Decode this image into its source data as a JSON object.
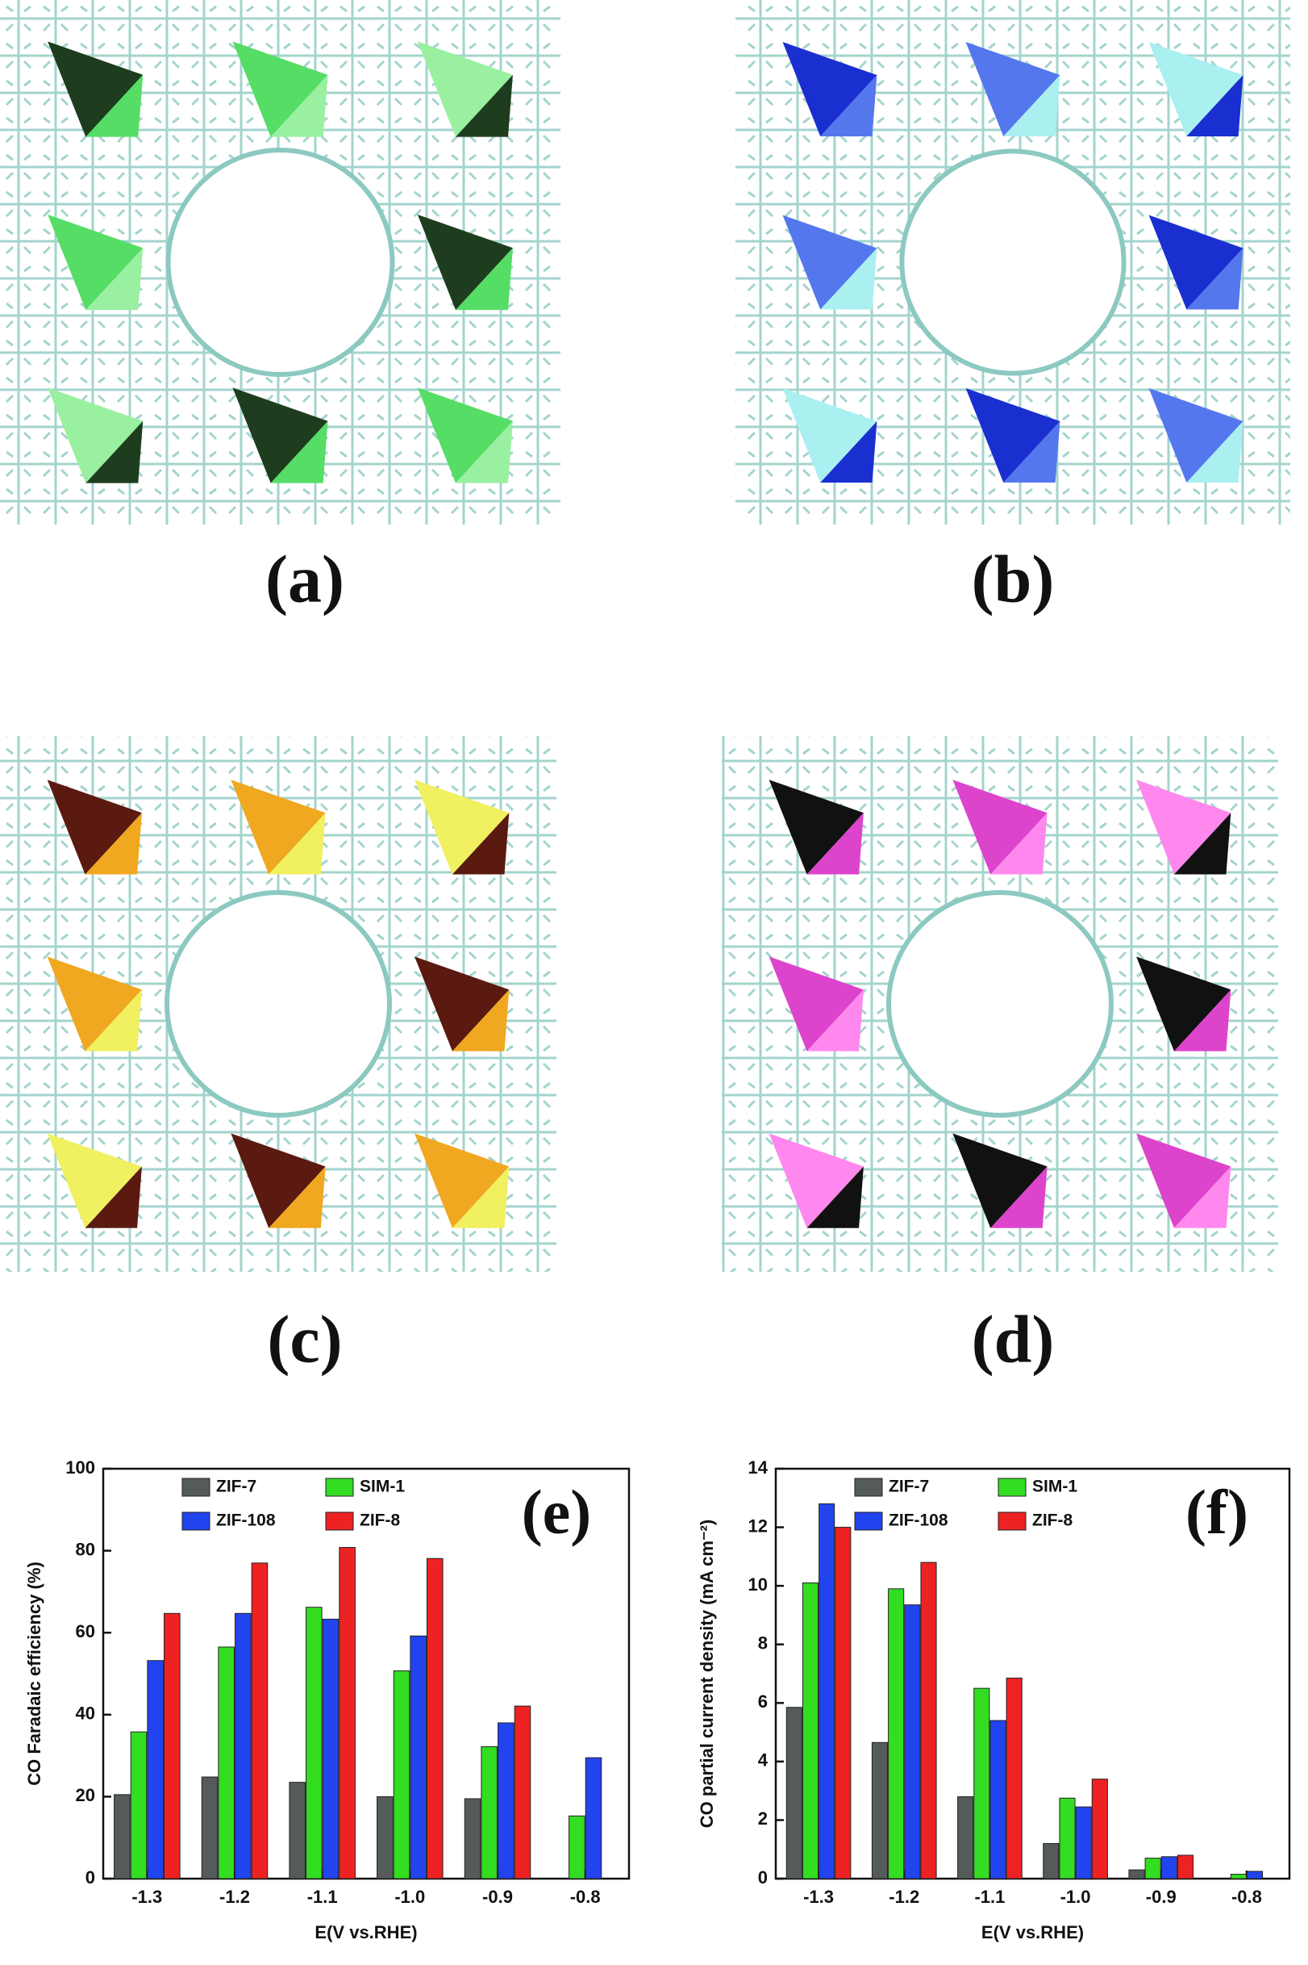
{
  "panels": [
    "(a)",
    "(b)",
    "(c)",
    "(d)"
  ],
  "chart_data": [
    {
      "type": "bar",
      "annotation": "(e)",
      "x_label": "E(V vs.RHE)",
      "y_label": "CO Faradaic efficiency (%)",
      "categories": [
        "-1.3",
        "-1.2",
        "-1.1",
        "-1.0",
        "-0.9",
        "-0.8"
      ],
      "series": [
        {
          "name": "ZIF-7",
          "color": "#555a5a",
          "values": [
            20.5,
            24.8,
            23.5,
            20,
            19.5,
            null
          ]
        },
        {
          "name": "SIM-1",
          "color": "#33dd22",
          "values": [
            35.8,
            56.5,
            66.2,
            50.7,
            32.2,
            15.3
          ]
        },
        {
          "name": "ZIF-108",
          "color": "#2244ee",
          "values": [
            53.2,
            64.7,
            63.3,
            59.2,
            38,
            29.5
          ]
        },
        {
          "name": "ZIF-8",
          "color": "#ee2222",
          "values": [
            64.7,
            77,
            80.8,
            78.1,
            42.1,
            null
          ]
        }
      ],
      "ylim": [
        0,
        100
      ],
      "yticks": [
        0,
        20,
        40,
        60,
        80,
        100
      ]
    },
    {
      "type": "bar",
      "annotation": "(f)",
      "x_label": "E(V vs.RHE)",
      "y_label": "CO partial current density (mA cm⁻²)",
      "categories": [
        "-1.3",
        "-1.2",
        "-1.1",
        "-1.0",
        "-0.9",
        "-0.8"
      ],
      "series": [
        {
          "name": "ZIF-7",
          "color": "#555a5a",
          "values": [
            5.85,
            4.65,
            2.8,
            1.2,
            0.3,
            0
          ]
        },
        {
          "name": "SIM-1",
          "color": "#33dd22",
          "values": [
            10.1,
            9.9,
            6.5,
            2.75,
            0.7,
            0.15
          ]
        },
        {
          "name": "ZIF-108",
          "color": "#2244ee",
          "values": [
            12.8,
            9.35,
            5.4,
            2.45,
            0.75,
            0.25
          ]
        },
        {
          "name": "ZIF-8",
          "color": "#ee2222",
          "values": [
            12,
            10.8,
            6.85,
            3.4,
            0.8,
            null
          ]
        }
      ],
      "ylim": [
        0,
        14
      ],
      "yticks": [
        0,
        2,
        4,
        6,
        8,
        10,
        12,
        14
      ]
    }
  ]
}
